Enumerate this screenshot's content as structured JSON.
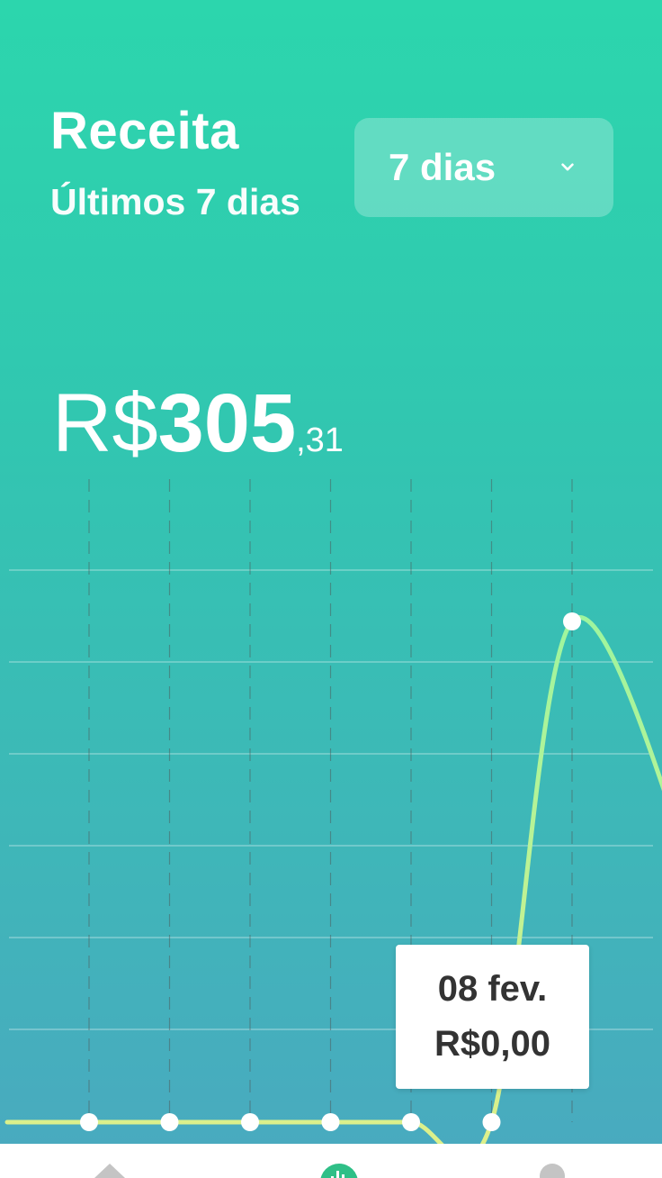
{
  "header": {
    "title": "Receita",
    "subtitle": "Últimos 7 dias"
  },
  "period_select": {
    "label": "7 dias",
    "icon": "chevron-down-icon"
  },
  "total": {
    "currency": "R$",
    "integer": "305",
    "cents": ",31"
  },
  "tooltip": {
    "date": "08 fev.",
    "value": "R$0,00"
  },
  "bottom_nav": {
    "items": [
      {
        "icon": "home-icon",
        "active": false
      },
      {
        "icon": "bar-chart-icon",
        "active": true
      },
      {
        "icon": "profile-icon",
        "active": false
      }
    ]
  },
  "colors": {
    "gradient_top": "#2cd6ad",
    "gradient_bottom": "#4aa9c0",
    "line_low": "#dff08a",
    "line_high": "#9ef59e",
    "nav_active": "#2fbf87"
  },
  "chart_data": {
    "type": "line",
    "series": [
      {
        "values": [
          0,
          0,
          0,
          0,
          0,
          0,
          305.31
        ]
      }
    ],
    "title": "",
    "xlabel": "",
    "ylabel": "",
    "grid": true,
    "highlight_index": 5
  }
}
